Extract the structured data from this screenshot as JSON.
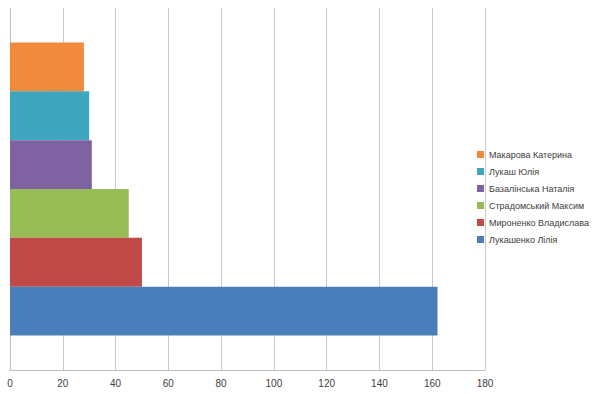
{
  "chart_data": {
    "type": "bar",
    "orientation": "horizontal",
    "categories": [
      null
    ],
    "series": [
      {
        "name": "Макарова Катерина",
        "color": "#f08a3c",
        "values": [
          28
        ]
      },
      {
        "name": "Лукаш Юлія",
        "color": "#3fa6bf",
        "values": [
          30
        ]
      },
      {
        "name": "Базалінська Наталія",
        "color": "#7f62a2",
        "values": [
          31
        ]
      },
      {
        "name": "Страдомський Максим",
        "color": "#98bb55",
        "values": [
          45
        ]
      },
      {
        "name": "Мироненко Владислава",
        "color": "#bf4a48",
        "values": [
          50
        ]
      },
      {
        "name": "Лукашенко Лілія",
        "color": "#4a7ebb",
        "values": [
          162
        ]
      }
    ],
    "xlim": [
      0,
      180
    ],
    "xticks": [
      0,
      20,
      40,
      60,
      80,
      100,
      120,
      140,
      160,
      180
    ],
    "grid": true,
    "legend": "right",
    "tick_labels": "x"
  }
}
